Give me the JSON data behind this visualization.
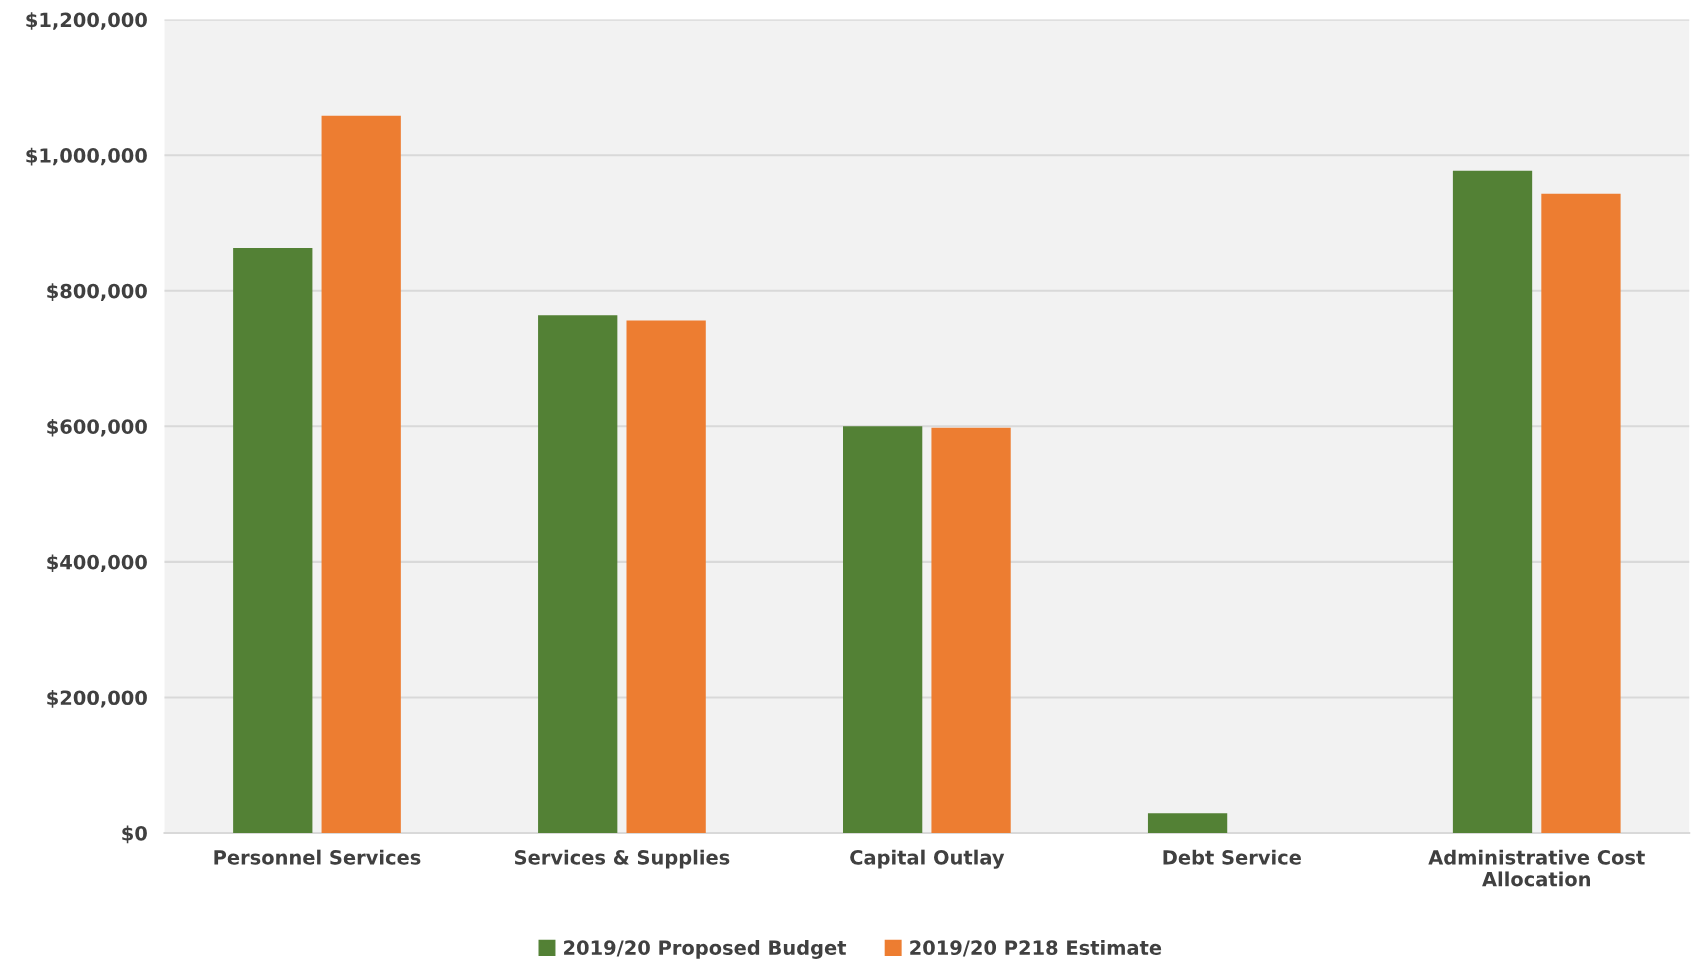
{
  "chart_data": {
    "type": "bar",
    "categories": [
      "Personnel Services",
      "Services & Supplies",
      "Capital Outlay",
      "Debt Service",
      "Administrative Cost\nAllocation"
    ],
    "series": [
      {
        "name": "2019/20 Proposed Budget",
        "color": "#538135",
        "values": [
          863000,
          764000,
          600000,
          29000,
          977000
        ]
      },
      {
        "name": "2019/20 P218 Estimate",
        "color": "#ed7d31",
        "values": [
          1058000,
          756000,
          598000,
          0,
          943000
        ]
      }
    ],
    "ylim": [
      0,
      1200000
    ],
    "yticks": [
      {
        "value": 0,
        "label": "$0"
      },
      {
        "value": 200000,
        "label": "$200,000"
      },
      {
        "value": 400000,
        "label": "$400,000"
      },
      {
        "value": 600000,
        "label": "$600,000"
      },
      {
        "value": 800000,
        "label": "$800,000"
      },
      {
        "value": 1000000,
        "label": "$1,000,000"
      },
      {
        "value": 1200000,
        "label": "$1,200,000"
      }
    ],
    "grid": "y",
    "legend": "bottom"
  }
}
